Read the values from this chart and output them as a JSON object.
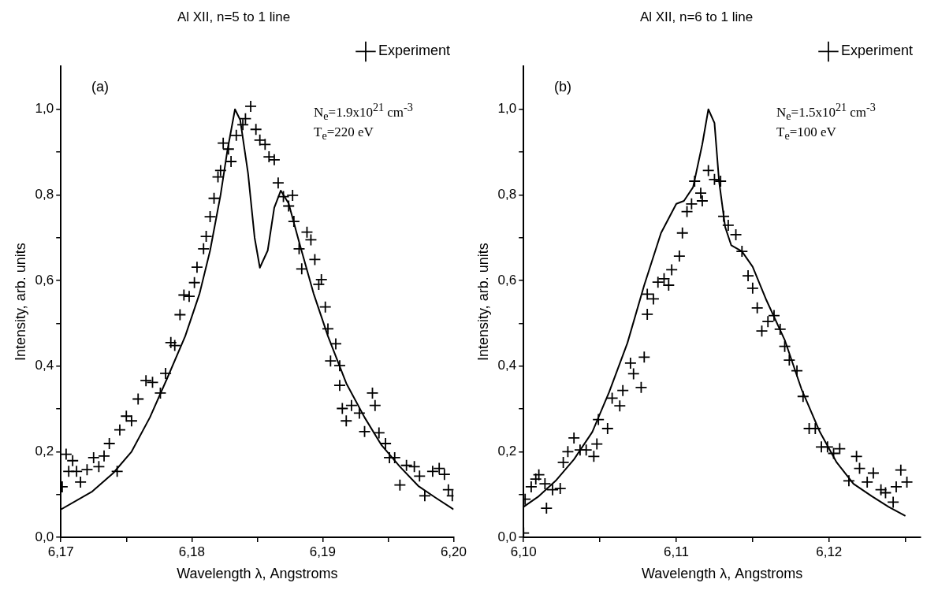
{
  "chart_data": [
    {
      "type": "line",
      "title": "Al XII, n=5 to 1 line",
      "xlabel": "Wavelength λ, Angstroms",
      "ylabel": "Intensity, arb. units",
      "annotations": [
        "(a)",
        "N$_{e}$=1.9x10$^{21}$ cm$^{-3}$",
        "T$_{e}$=220 eV"
      ],
      "legend": "top right",
      "grid": false,
      "xlim": [
        6.17,
        6.2
      ],
      "ylim": [
        0,
        1.1
      ],
      "xticks": [
        {
          "value": 6.17,
          "label": "6,17"
        },
        {
          "value": 6.175,
          "label": null
        },
        {
          "value": 6.18,
          "label": "6,18"
        },
        {
          "value": 6.185,
          "label": null
        },
        {
          "value": 6.19,
          "label": "6,19"
        },
        {
          "value": 6.195,
          "label": null
        },
        {
          "value": 6.2,
          "label": "6,20"
        }
      ],
      "yticks": [
        {
          "value": 0,
          "label": "0,0"
        },
        {
          "value": 0.1,
          "label": null
        },
        {
          "value": 0.2,
          "label": "0,2"
        },
        {
          "value": 0.3,
          "label": null
        },
        {
          "value": 0.4,
          "label": "0,4"
        },
        {
          "value": 0.5,
          "label": null
        },
        {
          "value": 0.6,
          "label": "0,6"
        },
        {
          "value": 0.7,
          "label": null
        },
        {
          "value": 0.8,
          "label": "0,8"
        },
        {
          "value": 0.9,
          "label": null
        },
        {
          "value": 1,
          "label": "1,0"
        }
      ],
      "series": [
        {
          "color": "#000000",
          "marker": "none",
          "line_style": "solid",
          "x": [
            6.17,
            6.1724,
            6.174,
            6.1754,
            6.1768,
            6.1781,
            6.1795,
            6.1806,
            6.1814,
            6.1822,
            6.1827,
            6.1833,
            6.1837,
            6.1843,
            6.1848,
            6.1852,
            6.1858,
            6.1863,
            6.1868,
            6.1874,
            6.1882,
            6.1893,
            6.1904,
            6.1918,
            6.1932,
            6.1945,
            6.1959,
            6.1973,
            6.1986,
            6.2
          ],
          "values": [
            0.065,
            0.107,
            0.15,
            0.2,
            0.28,
            0.37,
            0.47,
            0.57,
            0.67,
            0.8,
            0.9,
            1.0,
            0.975,
            0.85,
            0.7,
            0.63,
            0.67,
            0.77,
            0.81,
            0.78,
            0.69,
            0.57,
            0.47,
            0.36,
            0.28,
            0.215,
            0.165,
            0.12,
            0.093,
            0.065
          ]
        },
        {
          "type": "scatter",
          "name": "Experiment",
          "color": "#000000",
          "marker": "cross",
          "x": [
            6.1701,
            6.1704,
            6.1706,
            6.1709,
            6.1712,
            6.1715,
            6.172,
            6.1725,
            6.1729,
            6.1733,
            6.1737,
            6.1743,
            6.1745,
            6.175,
            6.1754,
            6.1759,
            6.1765,
            6.177,
            6.1776,
            6.178,
            6.1784,
            6.1787,
            6.1791,
            6.1794,
            6.1798,
            6.1802,
            6.1804,
            6.1809,
            6.1811,
            6.1814,
            6.1817,
            6.182,
            6.1822,
            6.1824,
            6.1828,
            6.183,
            6.1834,
            6.1839,
            6.1841,
            6.1845,
            6.1849,
            6.1852,
            6.1856,
            6.1859,
            6.1863,
            6.1866,
            6.187,
            6.1874,
            6.1877,
            6.1878,
            6.1882,
            6.1884,
            6.1888,
            6.1891,
            6.1894,
            6.1897,
            6.1899,
            6.1902,
            6.1904,
            6.191,
            6.1906,
            6.1913,
            6.1913,
            6.1915,
            6.1918,
            6.1922,
            6.1928,
            6.1932,
            6.1938,
            6.194,
            6.1943,
            6.1948,
            6.1951,
            6.1955,
            6.1959,
            6.1964,
            6.197,
            6.1974,
            6.1978,
            6.1984,
            6.1989,
            6.1993,
            6.1996,
            6.1999
          ],
          "values": [
            0.118,
            0.194,
            0.154,
            0.179,
            0.154,
            0.129,
            0.158,
            0.186,
            0.165,
            0.19,
            0.219,
            0.154,
            0.251,
            0.283,
            0.272,
            0.323,
            0.366,
            0.362,
            0.337,
            0.383,
            0.455,
            0.448,
            0.52,
            0.566,
            0.563,
            0.595,
            0.631,
            0.674,
            0.703,
            0.749,
            0.792,
            0.842,
            0.857,
            0.921,
            0.907,
            0.878,
            0.939,
            0.964,
            0.978,
            1.007,
            0.953,
            0.928,
            0.918,
            0.889,
            0.882,
            0.828,
            0.796,
            0.774,
            0.799,
            0.738,
            0.674,
            0.627,
            0.713,
            0.695,
            0.649,
            0.591,
            0.602,
            0.538,
            0.487,
            0.452,
            0.412,
            0.401,
            0.355,
            0.301,
            0.272,
            0.308,
            0.29,
            0.247,
            0.337,
            0.308,
            0.244,
            0.219,
            0.186,
            0.186,
            0.122,
            0.168,
            0.165,
            0.143,
            0.097,
            0.154,
            0.161,
            0.147,
            0.111,
            0.097
          ]
        }
      ]
    },
    {
      "type": "line",
      "title": "Al XII, n=6 to 1 line",
      "xlabel": "Wavelength λ, Angstroms",
      "ylabel": "Intensity, arb. units",
      "annotations": [
        "(b)",
        "N$_{e}$=1.5x10$^{21}$ cm$^{-3}$",
        "T$_{e}$=100 eV"
      ],
      "legend": "top right",
      "grid": false,
      "xlim": [
        6.1,
        6.126
      ],
      "ylim": [
        0,
        1.1
      ],
      "xticks": [
        {
          "value": 6.1,
          "label": "6,10"
        },
        {
          "value": 6.105,
          "label": null
        },
        {
          "value": 6.11,
          "label": "6,11"
        },
        {
          "value": 6.115,
          "label": null
        },
        {
          "value": 6.12,
          "label": "6,12"
        },
        {
          "value": 6.125,
          "label": null
        }
      ],
      "yticks": [
        {
          "value": 0,
          "label": "0,0"
        },
        {
          "value": 0.1,
          "label": null
        },
        {
          "value": 0.2,
          "label": "0,2"
        },
        {
          "value": 0.3,
          "label": null
        },
        {
          "value": 0.4,
          "label": "0,4"
        },
        {
          "value": 0.5,
          "label": null
        },
        {
          "value": 0.6,
          "label": "0,6"
        },
        {
          "value": 0.7,
          "label": null
        },
        {
          "value": 0.8,
          "label": "0,8"
        },
        {
          "value": 0.9,
          "label": null
        },
        {
          "value": 1,
          "label": "1,0"
        }
      ],
      "series": [
        {
          "color": "#000000",
          "marker": "none",
          "line_style": "solid",
          "x": [
            6.1,
            6.101,
            6.1021,
            6.1033,
            6.1045,
            6.1056,
            6.1068,
            6.1079,
            6.109,
            6.11,
            6.1105,
            6.1111,
            6.1117,
            6.1121,
            6.1125,
            6.1128,
            6.1132,
            6.1136,
            6.1143,
            6.115,
            6.1159,
            6.1171,
            6.1182,
            6.1194,
            6.1205,
            6.1216,
            6.1228,
            6.1239,
            6.125
          ],
          "values": [
            0.071,
            0.096,
            0.132,
            0.182,
            0.246,
            0.339,
            0.454,
            0.589,
            0.711,
            0.779,
            0.786,
            0.818,
            0.918,
            1.0,
            0.968,
            0.832,
            0.725,
            0.682,
            0.668,
            0.632,
            0.554,
            0.461,
            0.346,
            0.246,
            0.175,
            0.125,
            0.096,
            0.071,
            0.05
          ]
        },
        {
          "type": "scatter",
          "name": "Experiment",
          "color": "#000000",
          "marker": "cross",
          "x": [
            6.1,
            6.1001,
            6.1005,
            6.1008,
            6.101,
            6.1014,
            6.1015,
            6.1019,
            6.1024,
            6.1026,
            6.1029,
            6.1033,
            6.1037,
            6.1041,
            6.1046,
            6.1048,
            6.1049,
            6.1055,
            6.1058,
            6.1063,
            6.1065,
            6.107,
            6.1072,
            6.1077,
            6.1079,
            6.1081,
            6.1081,
            6.1085,
            6.1088,
            6.1092,
            6.1095,
            6.1097,
            6.1102,
            6.1104,
            6.1107,
            6.111,
            6.1112,
            6.1116,
            6.1117,
            6.1121,
            6.1125,
            6.1129,
            6.1131,
            6.1134,
            6.1139,
            6.1143,
            6.1147,
            6.115,
            6.1153,
            6.1156,
            6.116,
            6.1164,
            6.1168,
            6.1171,
            6.1174,
            6.1179,
            6.1183,
            6.1187,
            6.1191,
            6.1195,
            6.1199,
            6.1203,
            6.1207,
            6.1213,
            6.1218,
            6.122,
            6.1225,
            6.1229,
            6.1234,
            6.1237,
            6.1242,
            6.1244,
            6.1247,
            6.1251
          ],
          "values": [
            0.01,
            0.089,
            0.118,
            0.136,
            0.146,
            0.125,
            0.068,
            0.111,
            0.114,
            0.175,
            0.2,
            0.232,
            0.204,
            0.204,
            0.189,
            0.218,
            0.275,
            0.254,
            0.325,
            0.307,
            0.343,
            0.407,
            0.382,
            0.35,
            0.421,
            0.521,
            0.568,
            0.557,
            0.596,
            0.604,
            0.589,
            0.625,
            0.657,
            0.711,
            0.761,
            0.779,
            0.832,
            0.804,
            0.786,
            0.857,
            0.836,
            0.832,
            0.75,
            0.729,
            0.707,
            0.668,
            0.611,
            0.582,
            0.536,
            0.482,
            0.504,
            0.518,
            0.486,
            0.446,
            0.414,
            0.389,
            0.329,
            0.254,
            0.254,
            0.211,
            0.211,
            0.196,
            0.207,
            0.132,
            0.189,
            0.161,
            0.129,
            0.15,
            0.111,
            0.104,
            0.082,
            0.118,
            0.157,
            0.129
          ]
        }
      ]
    }
  ]
}
